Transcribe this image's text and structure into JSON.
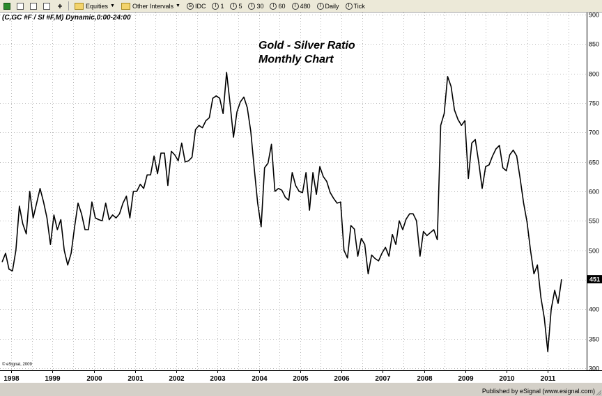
{
  "toolbar": {
    "items": [
      {
        "name": "chart-icon",
        "label": ""
      },
      {
        "name": "new-icon",
        "label": ""
      },
      {
        "name": "copy-icon",
        "label": ""
      },
      {
        "name": "page-icon",
        "label": ""
      },
      {
        "name": "add-icon",
        "label": ""
      }
    ],
    "equities_label": "Equities",
    "other_intervals_label": "Other Intervals",
    "idc_label": "IDC",
    "interval_buttons": [
      "1",
      "5",
      "30",
      "60",
      "480",
      "Daily",
      "Tick"
    ],
    "idc_glyph": "S",
    "interval_glyph": "I"
  },
  "chart": {
    "symbol": "(C,GC #F / SI #F,M) Dynamic,0:00-24:00",
    "title_line1": "Gold - Silver Ratio",
    "title_line2": "Monthly Chart",
    "copyright": "© eSignal, 2009",
    "last_value_badge": "451"
  },
  "status": {
    "published": "Published by eSignal (www.esignal.com)"
  },
  "chart_data": {
    "type": "line",
    "title": "Gold - Silver Ratio",
    "subtitle": "Monthly Chart",
    "ylim": [
      290,
      905
    ],
    "y_ticks": [
      300,
      350,
      400,
      450,
      500,
      550,
      600,
      650,
      700,
      750,
      800,
      850,
      900
    ],
    "x_tick_labels": [
      "1998",
      "1999",
      "2000",
      "2001",
      "2002",
      "2003",
      "2004",
      "2005",
      "2006",
      "2007",
      "2008",
      "2009",
      "2010",
      "2011"
    ],
    "grid": true,
    "last_value": 451,
    "colors": {
      "line": "#000000",
      "grid": "#b8b8b8",
      "badge_bg": "#000000",
      "badge_fg": "#ffffff"
    },
    "series": [
      {
        "x_start_year": 1998,
        "values": [
          480,
          495,
          468,
          465,
          500,
          575,
          545,
          528,
          600,
          555,
          580,
          605,
          582,
          555,
          510,
          560,
          535,
          552,
          500,
          475,
          495,
          540,
          580,
          562,
          535,
          535,
          582,
          555,
          552,
          550,
          580,
          552,
          560,
          555,
          562,
          580,
          592,
          555,
          600,
          600,
          612,
          605,
          628,
          628,
          660,
          630,
          665,
          665,
          610,
          668,
          662,
          652,
          682,
          650,
          652,
          658,
          705,
          712,
          708,
          720,
          725,
          758,
          762,
          758,
          732,
          802,
          750,
          692,
          735,
          752,
          760,
          742,
          702,
          640,
          580,
          540,
          640,
          648,
          680,
          600,
          605,
          602,
          590,
          585,
          632,
          610,
          600,
          598,
          632,
          568,
          632,
          595,
          642,
          625,
          617,
          598,
          588,
          580,
          582,
          500,
          487,
          542,
          536,
          490,
          520,
          510,
          460,
          492,
          486,
          482,
          495,
          505,
          490,
          527,
          510,
          550,
          535,
          553,
          562,
          562,
          550,
          490,
          532,
          525,
          530,
          535,
          518,
          712,
          732,
          795,
          778,
          738,
          722,
          712,
          720,
          622,
          682,
          688,
          650,
          605,
          642,
          645,
          660,
          672,
          678,
          640,
          635,
          662,
          670,
          660,
          622,
          580,
          548,
          500,
          460,
          475,
          420,
          385,
          328,
          400,
          432,
          410,
          451
        ]
      }
    ]
  }
}
